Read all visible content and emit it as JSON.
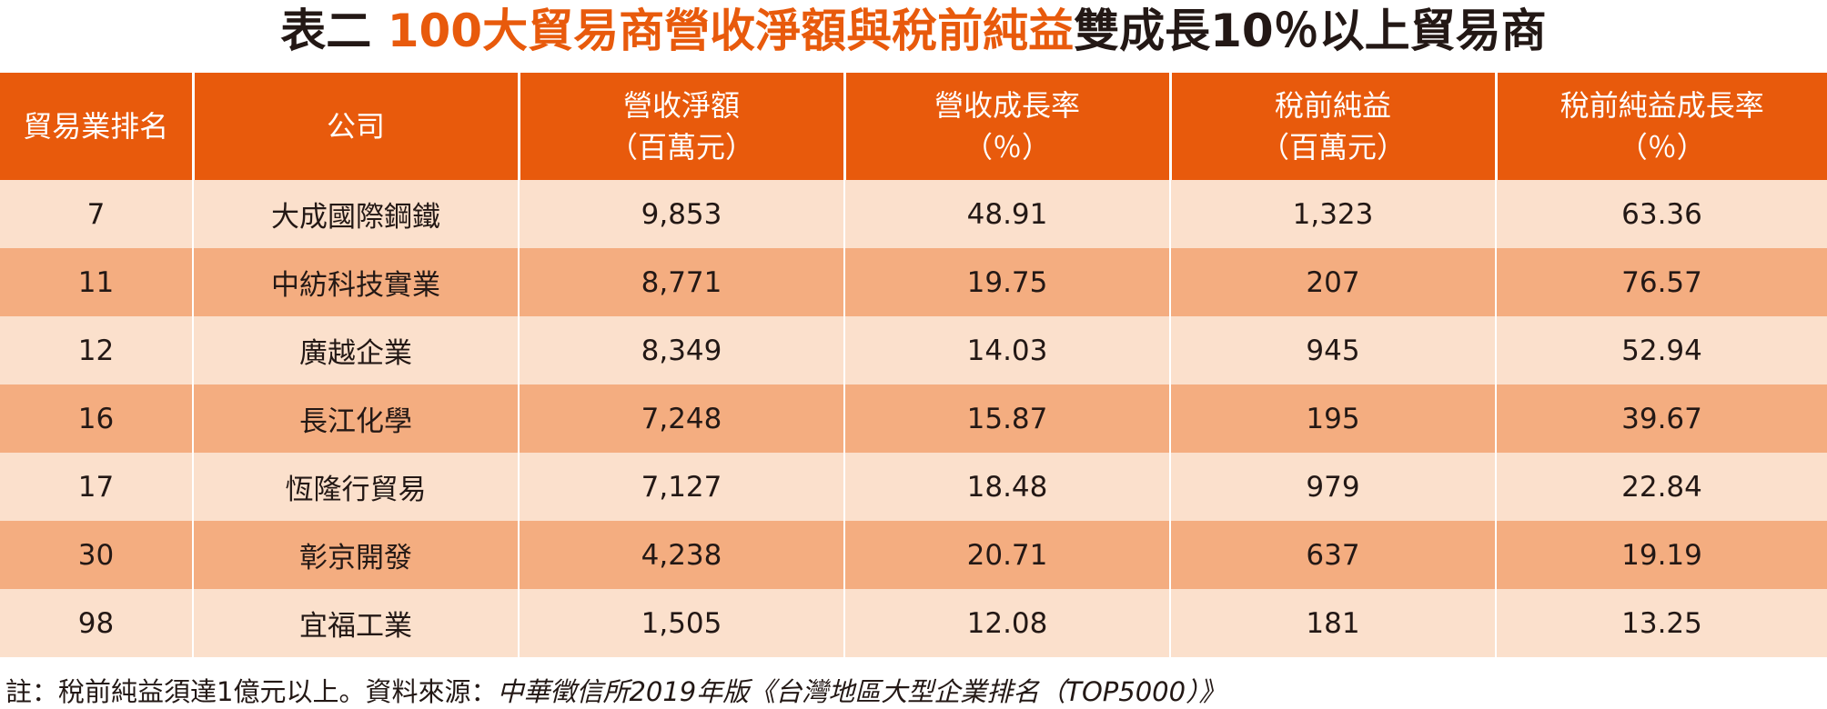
{
  "title": {
    "prefix": "表二 ",
    "accent": "100大貿易商營收淨額與稅前純益",
    "suffix": "雙成長10％以上貿易商"
  },
  "table": {
    "headers": [
      {
        "line1": "貿易業排名",
        "line2": ""
      },
      {
        "line1": "公司",
        "line2": ""
      },
      {
        "line1": "營收淨額",
        "line2": "（百萬元）"
      },
      {
        "line1": "營收成長率",
        "line2": "（％）"
      },
      {
        "line1": "稅前純益",
        "line2": "（百萬元）"
      },
      {
        "line1": "稅前純益成長率",
        "line2": "（％）"
      }
    ],
    "rows": [
      [
        "7",
        "大成國際鋼鐵",
        "9,853",
        "48.91",
        "1,323",
        "63.36"
      ],
      [
        "11",
        "中紡科技實業",
        "8,771",
        "19.75",
        "207",
        "76.57"
      ],
      [
        "12",
        "廣越企業",
        "8,349",
        "14.03",
        "945",
        "52.94"
      ],
      [
        "16",
        "長江化學",
        "7,248",
        "15.87",
        "195",
        "39.67"
      ],
      [
        "17",
        "恆隆行貿易",
        "7,127",
        "18.48",
        "979",
        "22.84"
      ],
      [
        "30",
        "彰京開發",
        "4,238",
        "20.71",
        "637",
        "19.19"
      ],
      [
        "98",
        "宜福工業",
        "1,505",
        "12.08",
        "181",
        "13.25"
      ]
    ]
  },
  "footnote": {
    "note": "註：稅前純益須達1億元以上。資料來源：",
    "source": "中華徵信所2019年版《台灣地區大型企業排名（TOP5000）》"
  },
  "colors": {
    "accent": "#e85a0c",
    "header_bg": "#e85a0c",
    "row_light": "#fbe0cc",
    "row_dark": "#f4ad80",
    "text": "#231815"
  }
}
